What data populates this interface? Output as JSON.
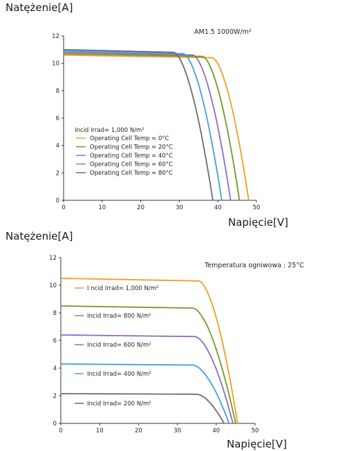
{
  "chart_data": [
    {
      "type": "line",
      "ylabel": "Natężenie[A]",
      "xlabel": "Napięcie[V]",
      "annotation": "AM1.5 1000W/m²",
      "legend_title": "Incid Irrad= 1,000 N/m²",
      "legend_placement": "lower-left",
      "xlim": [
        0,
        50
      ],
      "ylim": [
        0,
        12
      ],
      "xticks": [
        0,
        10,
        20,
        30,
        40,
        50
      ],
      "yticks": [
        0,
        2,
        4,
        6,
        8,
        10,
        12
      ],
      "grid": false,
      "series": [
        {
          "name": "Operating Cell Temp = 0°C",
          "color": "#f39c1f",
          "isc": 10.6,
          "voc": 48.0,
          "vmp": 38.5
        },
        {
          "name": "Operating Cell Temp = 20°C",
          "color": "#6e9a2c",
          "isc": 10.7,
          "voc": 45.6,
          "vmp": 36.0
        },
        {
          "name": "Operating Cell Temp = 40°C",
          "color": "#8a6cc6",
          "isc": 10.8,
          "voc": 43.3,
          "vmp": 33.5
        },
        {
          "name": "Operating Cell Temp = 60°C",
          "color": "#3e9ee0",
          "isc": 10.9,
          "voc": 41.0,
          "vmp": 31.0
        },
        {
          "name": "Operating Cell Temp = 80°C",
          "color": "#6b6b6b",
          "isc": 11.0,
          "voc": 38.7,
          "vmp": 28.5
        }
      ]
    },
    {
      "type": "line",
      "ylabel": "Natężenie[A]",
      "xlabel": "Napięcie[V]",
      "annotation": "Temperatura ogniwowa : 25°C",
      "xlim": [
        0,
        50
      ],
      "ylim": [
        0,
        12
      ],
      "xticks": [
        0,
        10,
        20,
        30,
        40,
        50
      ],
      "yticks": [
        0,
        2,
        4,
        6,
        8,
        10,
        12
      ],
      "grid": false,
      "series": [
        {
          "name": "I ncid Irrad= 1,000 N/m²",
          "color": "#f39c1f",
          "isc": 10.5,
          "voc": 45.5,
          "vmp": 35.5
        },
        {
          "name": "Incid Irrad= 800 N/m²",
          "color": "#6e9a2c",
          "isc": 8.5,
          "voc": 45.0,
          "vmp": 34.0
        },
        {
          "name": "Incid Irrad= 600 N/m²",
          "color": "#8a6cc6",
          "isc": 6.4,
          "voc": 44.3,
          "vmp": 34.5
        },
        {
          "name": "Incid Irrad= 400 N/m²",
          "color": "#3e9ee0",
          "isc": 4.3,
          "voc": 43.3,
          "vmp": 34.0
        },
        {
          "name": "Incid Irrad= 200 N/m²",
          "color": "#6b6b6b",
          "isc": 2.15,
          "voc": 42.0,
          "vmp": 35.0
        }
      ]
    }
  ]
}
